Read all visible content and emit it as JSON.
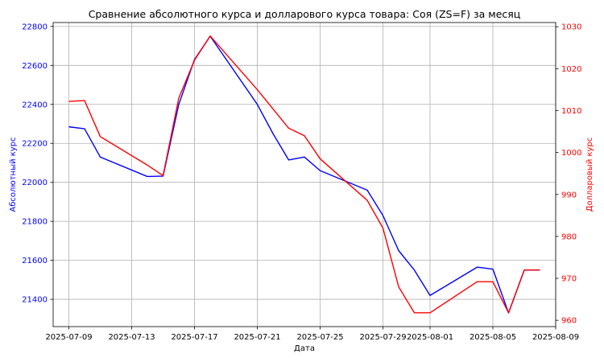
{
  "chart_data": {
    "type": "line",
    "title": "Сравнение абсолютного курса и долларового курса товара: Соя (ZS=F) за месяц",
    "xlabel": "Дата",
    "ylabel_left": "Абсолютный курс",
    "ylabel_right": "Долларовый курс",
    "x_ticks": [
      "2025-07-09",
      "2025-07-13",
      "2025-07-17",
      "2025-07-21",
      "2025-07-25",
      "2025-07-29",
      "2025-08-01",
      "2025-08-05",
      "2025-08-09"
    ],
    "y_left_ticks": [
      "21400",
      "21600",
      "21800",
      "22000",
      "22200",
      "22400",
      "22600",
      "22800"
    ],
    "y_right_ticks": [
      "960",
      "970",
      "980",
      "990",
      "1000",
      "1010",
      "1020",
      "1030"
    ],
    "ylim_left": [
      21260,
      22820
    ],
    "ylim_right": [
      958.5,
      1031
    ],
    "xlim": [
      "2025-07-08",
      "2025-08-09"
    ],
    "grid": true,
    "colors": {
      "left_series": "#0000ff",
      "right_series": "#ff0000",
      "grid": "#b0b0b0"
    },
    "series": [
      {
        "axis": "left",
        "color": "#0000ff",
        "points": [
          [
            "2025-07-09",
            22285
          ],
          [
            "2025-07-10",
            22275
          ],
          [
            "2025-07-11",
            22130
          ],
          [
            "2025-07-14",
            22030
          ],
          [
            "2025-07-15",
            22032
          ],
          [
            "2025-07-16",
            22400
          ],
          [
            "2025-07-17",
            22630
          ],
          [
            "2025-07-18",
            22750
          ],
          [
            "2025-07-21",
            22400
          ],
          [
            "2025-07-22",
            22250
          ],
          [
            "2025-07-23",
            22115
          ],
          [
            "2025-07-24",
            22130
          ],
          [
            "2025-07-25",
            22060
          ],
          [
            "2025-07-28",
            21960
          ],
          [
            "2025-07-29",
            21830
          ],
          [
            "2025-07-30",
            21650
          ],
          [
            "2025-07-31",
            21550
          ],
          [
            "2025-08-01",
            21420
          ],
          [
            "2025-08-04",
            21565
          ],
          [
            "2025-08-05",
            21555
          ],
          [
            "2025-08-06",
            21330
          ],
          [
            "2025-08-07",
            21550
          ],
          [
            "2025-08-08",
            21550
          ]
        ]
      },
      {
        "axis": "right",
        "color": "#ff0000",
        "points": [
          [
            "2025-07-09",
            1012.2
          ],
          [
            "2025-07-10",
            1012.4
          ],
          [
            "2025-07-11",
            1003.8
          ],
          [
            "2025-07-14",
            997
          ],
          [
            "2025-07-15",
            994.5
          ],
          [
            "2025-07-16",
            1013
          ],
          [
            "2025-07-17",
            1022
          ],
          [
            "2025-07-18",
            1027.8
          ],
          [
            "2025-07-21",
            1015
          ],
          [
            "2025-07-23",
            1005.8
          ],
          [
            "2025-07-24",
            1004
          ],
          [
            "2025-07-25",
            998.5
          ],
          [
            "2025-07-28",
            988.6
          ],
          [
            "2025-07-29",
            982
          ],
          [
            "2025-07-30",
            968
          ],
          [
            "2025-07-31",
            961.8
          ],
          [
            "2025-08-01",
            961.8
          ],
          [
            "2025-08-04",
            969.2
          ],
          [
            "2025-08-05",
            969.2
          ],
          [
            "2025-08-06",
            961.8
          ],
          [
            "2025-08-07",
            972
          ],
          [
            "2025-08-08",
            972
          ]
        ]
      }
    ]
  }
}
